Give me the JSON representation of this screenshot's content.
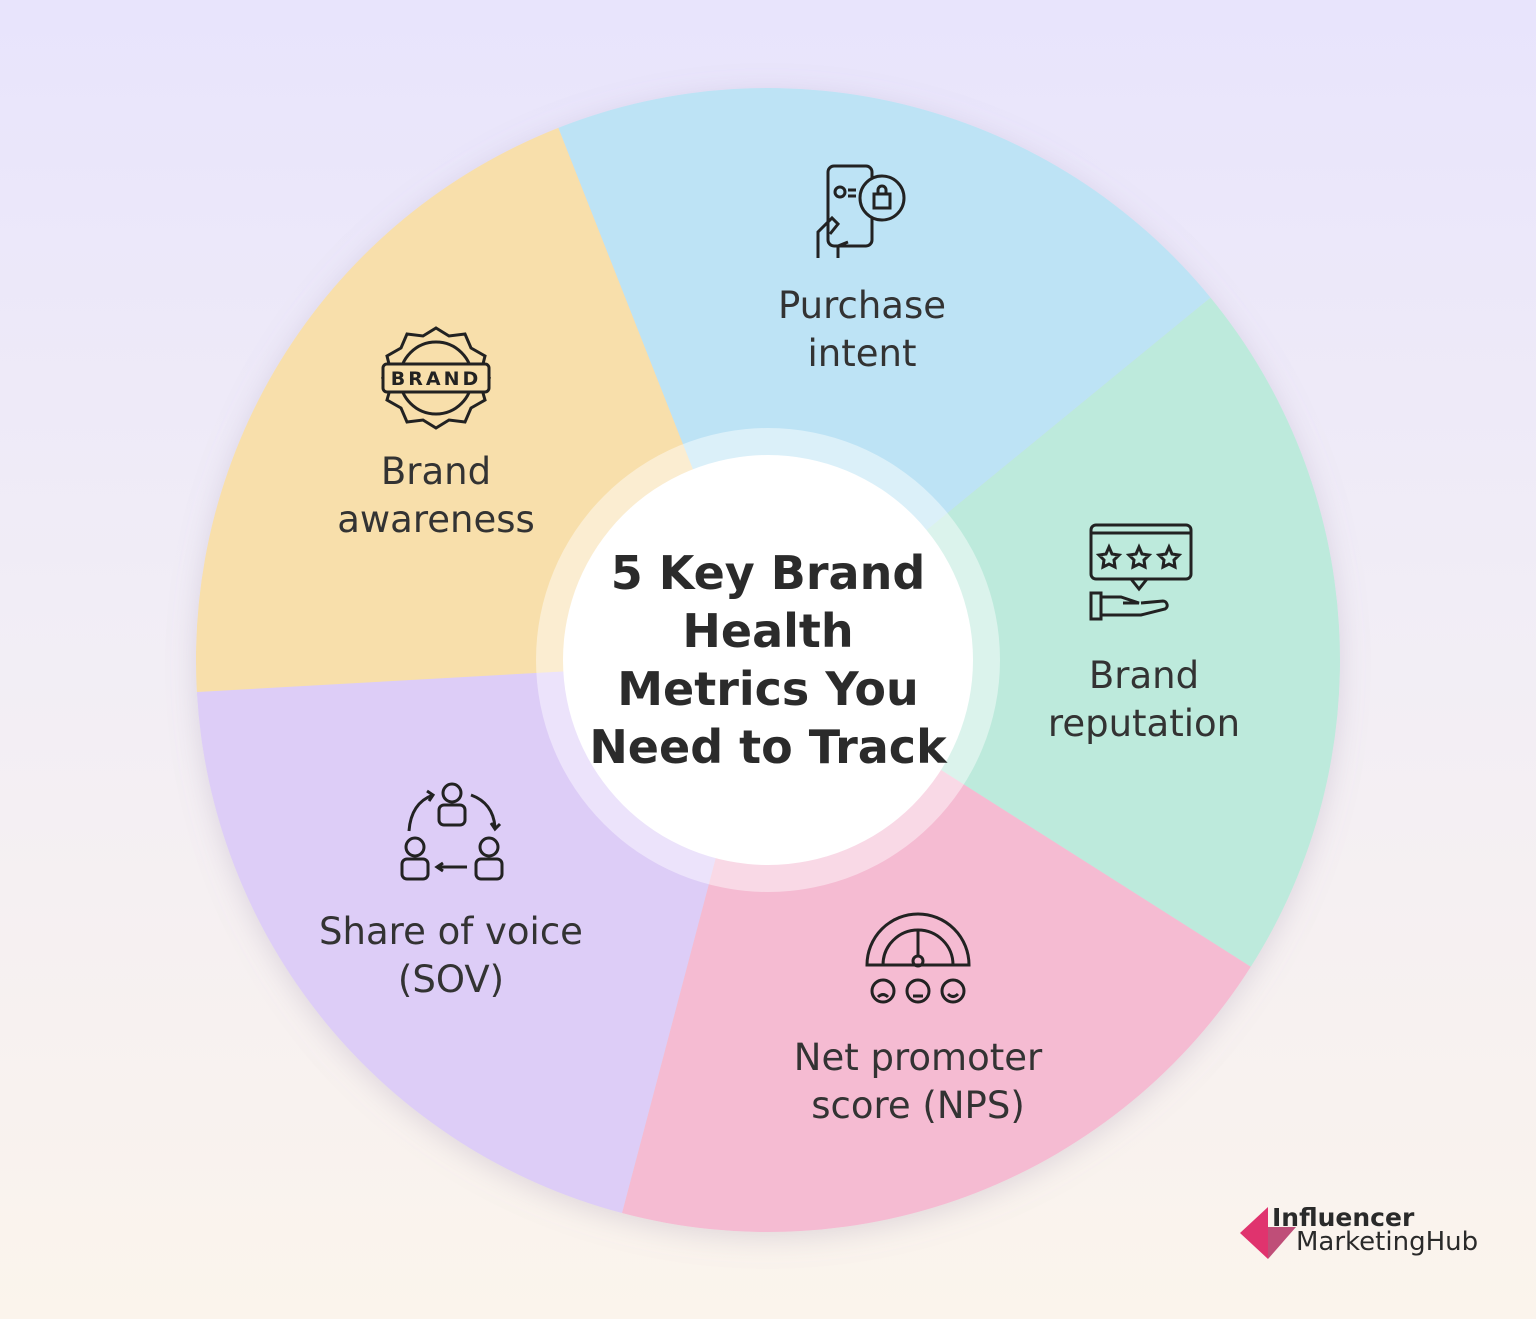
{
  "title": "5 Key Brand Health Metrics You Need to Track",
  "segments": [
    {
      "label_line1": "Purchase",
      "label_line2": "intent",
      "icon": "phone-shopping-bag-icon",
      "color": "#bde3f5"
    },
    {
      "label_line1": "Brand",
      "label_line2": "reputation",
      "icon": "star-rating-hand-icon",
      "color": "#bdeadc"
    },
    {
      "label_line1": "Net promoter",
      "label_line2": "score (NPS)",
      "icon": "gauge-faces-icon",
      "color": "#f5bbd2"
    },
    {
      "label_line1": "Share of voice",
      "label_line2": "(SOV)",
      "icon": "people-cycle-icon",
      "color": "#ddcdf7"
    },
    {
      "label_line1": "Brand",
      "label_line2": "awareness",
      "icon": "brand-badge-icon",
      "color": "#f8dfab"
    }
  ],
  "brand_badge_text": "BRAND",
  "logo": {
    "line1": "Influencer",
    "line2": "MarketingHub",
    "color": "#e0336e"
  }
}
